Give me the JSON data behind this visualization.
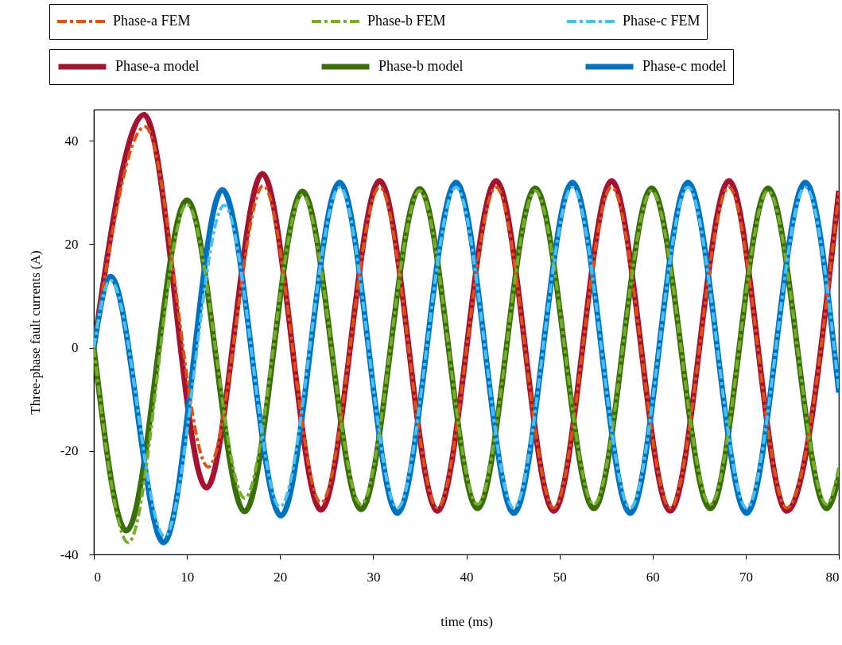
{
  "chart_data": {
    "type": "line",
    "xlabel": "time (ms)",
    "ylabel": "Three-phase fault currents (A)",
    "xlim": [
      0,
      80
    ],
    "ylim": [
      -40,
      46
    ],
    "xticks": [
      0,
      10,
      20,
      30,
      40,
      50,
      60,
      70,
      80
    ],
    "yticks": [
      -40,
      -20,
      0,
      20,
      40
    ],
    "grid": false,
    "legend": "top",
    "marker": "none",
    "series": [
      {
        "name": "Phase-a FEM",
        "color": "#d95319",
        "line_style": "dashed",
        "x": [
          0,
          5.5,
          12.3,
          18.2,
          24.4,
          30.7,
          36.9,
          43.2,
          49.4,
          55.6,
          61.9,
          68.2,
          74.4,
          80
        ],
        "values": [
          0,
          42.7,
          -23.1,
          31.3,
          -30,
          31,
          -31,
          31,
          -31,
          31,
          -31,
          31,
          -31,
          30
        ]
      },
      {
        "name": "Phase-b FEM",
        "color": "#77ac30",
        "line_style": "dashed",
        "x": [
          0,
          3.7,
          10.0,
          16.2,
          22.4,
          28.7,
          35.0,
          41.2,
          47.4,
          53.7,
          59.9,
          66.2,
          72.4,
          78.7,
          80
        ],
        "values": [
          0,
          -37.7,
          27.7,
          -29.1,
          29.5,
          -30.3,
          30.3,
          -30.3,
          30.3,
          -30.3,
          30.3,
          -30.3,
          30.3,
          -30.3,
          -23.2
        ]
      },
      {
        "name": "Phase-c FEM",
        "color": "#4dbeee",
        "line_style": "dashed",
        "x": [
          0,
          1.8,
          7.6,
          14.0,
          20.0,
          26.4,
          32.6,
          38.9,
          45.1,
          51.4,
          57.6,
          63.8,
          70.1,
          76.4,
          80
        ],
        "values": [
          0,
          13,
          -36.5,
          27.5,
          -30.8,
          31,
          -31,
          31,
          -31,
          31,
          -31,
          31,
          -31,
          31,
          -8
        ]
      },
      {
        "name": "Phase-a model",
        "color": "#a2142f",
        "line_style": "solid",
        "x": [
          0,
          5.4,
          12.1,
          18.1,
          24.4,
          30.7,
          36.9,
          43.2,
          49.4,
          55.6,
          61.9,
          68.2,
          74.4,
          80
        ],
        "values": [
          0,
          45,
          -27.1,
          33.6,
          -31.4,
          32.2,
          -31.6,
          32.2,
          -31.6,
          32.2,
          -31.6,
          32.2,
          -31.6,
          30.3
        ]
      },
      {
        "name": "Phase-b model",
        "color": "#3a6e0a",
        "line_style": "solid",
        "x": [
          0,
          3.5,
          10.0,
          16.2,
          22.4,
          28.7,
          35.0,
          41.2,
          47.4,
          53.7,
          59.9,
          66.2,
          72.4,
          78.7,
          80
        ],
        "values": [
          0,
          -35.4,
          28.5,
          -31.7,
          30.2,
          -31.3,
          30.7,
          -31.1,
          30.8,
          -31.1,
          30.8,
          -31.1,
          30.8,
          -31.1,
          -25
        ]
      },
      {
        "name": "Phase-c model",
        "color": "#0072bd",
        "line_style": "solid",
        "x": [
          0,
          1.8,
          7.5,
          13.8,
          20.1,
          26.4,
          32.6,
          38.9,
          45.1,
          51.4,
          57.6,
          63.8,
          70.1,
          76.4,
          80
        ],
        "values": [
          0,
          13.7,
          -37.7,
          30.5,
          -32.5,
          31.9,
          -32,
          31.9,
          -32,
          31.9,
          -32,
          31.9,
          -32,
          31.9,
          -8.7
        ]
      }
    ]
  }
}
